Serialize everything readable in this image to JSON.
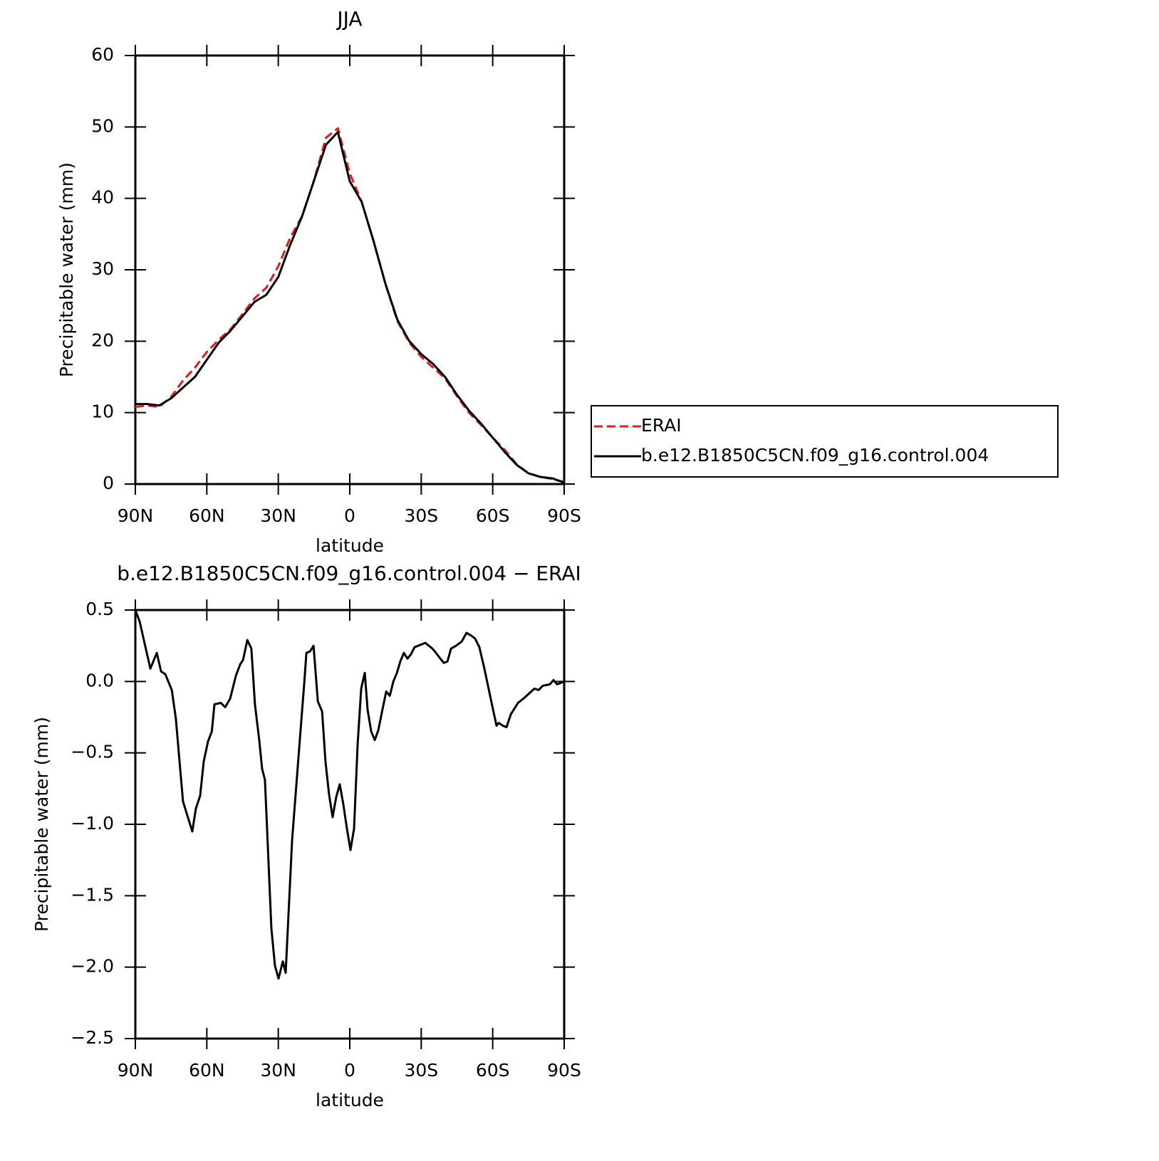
{
  "chart_data": [
    {
      "type": "line",
      "title": "JJA",
      "xlabel": "latitude",
      "ylabel": "Precipitable water (mm)",
      "x": [
        90,
        85,
        80,
        75,
        70,
        65,
        60,
        55,
        50,
        45,
        40,
        35,
        30,
        25,
        20,
        15,
        10,
        5,
        0,
        -5,
        -10,
        -15,
        -20,
        -25,
        -30,
        -35,
        -40,
        -45,
        -50,
        -55,
        -60,
        -65,
        -70,
        -75,
        -80,
        -85,
        -90
      ],
      "series": [
        {
          "name": "ERAI",
          "color": "#e41a1c",
          "style": "dashed",
          "values": [
            10.8,
            11.0,
            10.8,
            12.2,
            14.5,
            16.3,
            18.5,
            20.2,
            21.7,
            23.8,
            26.0,
            27.5,
            30.5,
            34.5,
            37.5,
            42.5,
            48.5,
            49.8,
            43.5,
            39.5,
            34.0,
            28.0,
            22.8,
            19.8,
            17.8,
            16.3,
            14.8,
            12.3,
            10.0,
            8.3,
            6.5,
            4.8,
            2.8,
            1.5,
            1.0,
            0.7,
            0.3
          ]
        },
        {
          "name": "b.e12.B1850C5CN.f09_g16.control.004",
          "color": "#000000",
          "style": "solid",
          "values": [
            11.2,
            11.2,
            11.0,
            12.0,
            13.5,
            15.0,
            17.4,
            19.8,
            21.5,
            23.5,
            25.5,
            26.5,
            29.0,
            33.5,
            37.5,
            42.5,
            47.5,
            49.3,
            42.4,
            39.5,
            34.0,
            28.0,
            23.0,
            20.0,
            18.2,
            16.8,
            15.0,
            12.5,
            10.3,
            8.5,
            6.5,
            4.5,
            2.7,
            1.5,
            1.0,
            0.8,
            0.2
          ]
        }
      ],
      "xlim": [
        90,
        -90
      ],
      "xticks": [
        {
          "value": 90,
          "label": "90N"
        },
        {
          "value": 60,
          "label": "60N"
        },
        {
          "value": 30,
          "label": "30N"
        },
        0,
        {
          "value": -30,
          "label": "30S"
        },
        {
          "value": -60,
          "label": "60S"
        },
        {
          "value": -90,
          "label": "90S"
        }
      ],
      "ylim": [
        0,
        60
      ],
      "yticks": [
        0,
        10,
        20,
        30,
        40,
        50,
        60
      ],
      "legend": "right"
    },
    {
      "type": "line",
      "title": "b.e12.B1850C5CN.f09_g16.control.004 − ERAI",
      "xlabel": "latitude",
      "ylabel": "Precipitable water (mm)",
      "x": [
        90,
        88.2,
        83.7,
        81,
        79.2,
        77.4,
        74.7,
        73,
        70,
        66.1,
        64.6,
        62.8,
        61.3,
        59.5,
        57.9,
        56.8,
        54.1,
        52.3,
        50.2,
        47.8,
        46,
        44.8,
        43,
        41.3,
        39.8,
        38,
        36.8,
        35.6,
        32.9,
        31.4,
        29.9,
        28.1,
        26.9,
        24.2,
        21.2,
        19.1,
        18.2,
        16.7,
        15.2,
        13.4,
        11.6,
        10.2,
        8.7,
        7.2,
        5.7,
        4.2,
        2.7,
        1.2,
        -0.3,
        -1.8,
        -3.3,
        -4.8,
        -6.3,
        -7.5,
        -9,
        -10.5,
        -12,
        -13.8,
        -15.3,
        -16.8,
        -18.3,
        -19.8,
        -21.2,
        -22.7,
        -24.2,
        -25.7,
        -27.2,
        -31.7,
        -34.7,
        -36.2,
        -38,
        -39.5,
        -41,
        -42.5,
        -44.6,
        -47,
        -49,
        -51.1,
        -52.6,
        -54.4,
        -56.5,
        -58.9,
        -61.6,
        -62.5,
        -64.3,
        -65.8,
        -67.6,
        -70.6,
        -73.6,
        -77.5,
        -79.3,
        -81,
        -84,
        -85.5,
        -87,
        -90
      ],
      "series": [
        {
          "name": "b.e12.B1850C5CN.f09_g16.control.004 − ERAI",
          "color": "#000000",
          "style": "solid",
          "values": [
            0.5,
            0.42,
            0.09,
            0.2,
            0.07,
            0.05,
            -0.06,
            -0.26,
            -0.84,
            -1.05,
            -0.89,
            -0.8,
            -0.56,
            -0.42,
            -0.35,
            -0.16,
            -0.15,
            -0.18,
            -0.12,
            0.04,
            0.12,
            0.15,
            0.29,
            0.23,
            -0.16,
            -0.41,
            -0.61,
            -0.69,
            -1.73,
            -1.99,
            -2.08,
            -1.96,
            -2.04,
            -1.11,
            -0.46,
            -0.01,
            0.2,
            0.21,
            0.25,
            -0.14,
            -0.21,
            -0.56,
            -0.79,
            -0.95,
            -0.81,
            -0.72,
            -0.86,
            -1.03,
            -1.18,
            -1.03,
            -0.44,
            -0.05,
            0.06,
            -0.2,
            -0.35,
            -0.41,
            -0.34,
            -0.19,
            -0.07,
            -0.1,
            0,
            0.06,
            0.14,
            0.2,
            0.16,
            0.19,
            0.24,
            0.27,
            0.23,
            0.2,
            0.16,
            0.13,
            0.14,
            0.23,
            0.25,
            0.28,
            0.34,
            0.32,
            0.3,
            0.24,
            0.09,
            -0.1,
            -0.31,
            -0.29,
            -0.31,
            -0.32,
            -0.23,
            -0.15,
            -0.11,
            -0.05,
            -0.06,
            -0.03,
            -0.02,
            0.01,
            -0.02,
            0
          ]
        }
      ],
      "xlim": [
        90,
        -90
      ],
      "xticks": [
        {
          "value": 90,
          "label": "90N"
        },
        {
          "value": 60,
          "label": "60N"
        },
        {
          "value": 30,
          "label": "30N"
        },
        0,
        {
          "value": -30,
          "label": "30S"
        },
        {
          "value": -60,
          "label": "60S"
        },
        {
          "value": -90,
          "label": "90S"
        }
      ],
      "ylim": [
        -2.5,
        0.5
      ],
      "yticks": [
        {
          "value": -2.5,
          "label": "−2.5"
        },
        {
          "value": -2.0,
          "label": "−2.0"
        },
        {
          "value": -1.5,
          "label": "−1.5"
        },
        {
          "value": -1.0,
          "label": "−1.0"
        },
        {
          "value": -0.5,
          "label": "−0.5"
        },
        {
          "value": 0.0,
          "label": "0.0"
        },
        0.5
      ]
    }
  ]
}
